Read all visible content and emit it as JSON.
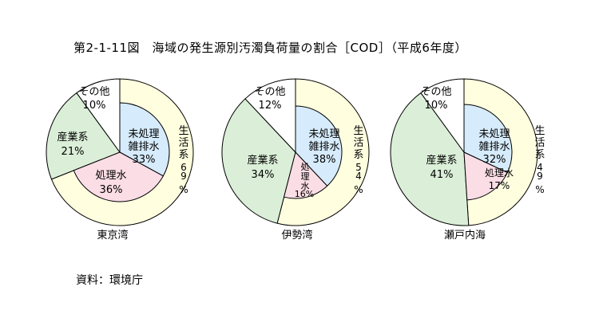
{
  "title": "第2-1-11図　海域の発生源別汚濁負荷量の割合［COD］（平成6年度）",
  "source": "資料：環境庁",
  "colors": {
    "domestic": "#ffffe0",
    "untreated": "#d6ebfb",
    "treated": "#fbdde6",
    "industry": "#dbefd8",
    "other": "#ffffff",
    "stroke": "#000000"
  },
  "chart_data": [
    {
      "type": "pie",
      "name": "東京湾",
      "slices": [
        {
          "label": "生活系",
          "value": 69,
          "sublabel": "生活系",
          "pct_text": "69%",
          "children": [
            {
              "label": "未処理雑排水",
              "value": 33,
              "pct_text": "33%"
            },
            {
              "label": "処理水",
              "value": 36,
              "pct_text": "36%"
            }
          ]
        },
        {
          "label": "産業系",
          "value": 21,
          "pct_text": "21%"
        },
        {
          "label": "その他",
          "value": 10,
          "pct_text": "10%"
        }
      ]
    },
    {
      "type": "pie",
      "name": "伊勢湾",
      "slices": [
        {
          "label": "生活系",
          "value": 54,
          "pct_text": "54%",
          "children": [
            {
              "label": "未処理雑排水",
              "value": 38,
              "pct_text": "38%"
            },
            {
              "label": "処理水",
              "value": 16,
              "pct_text": "16%"
            }
          ]
        },
        {
          "label": "産業系",
          "value": 34,
          "pct_text": "34%"
        },
        {
          "label": "その他",
          "value": 12,
          "pct_text": "12%"
        }
      ]
    },
    {
      "type": "pie",
      "name": "瀬戸内海",
      "slices": [
        {
          "label": "生活系",
          "value": 49,
          "pct_text": "49%",
          "children": [
            {
              "label": "未処理雑排水",
              "value": 32,
              "pct_text": "32%"
            },
            {
              "label": "処理水",
              "value": 17,
              "pct_text": "17%"
            }
          ]
        },
        {
          "label": "産業系",
          "value": 41,
          "pct_text": "41%"
        },
        {
          "label": "その他",
          "value": 10,
          "pct_text": "10%"
        }
      ]
    }
  ]
}
